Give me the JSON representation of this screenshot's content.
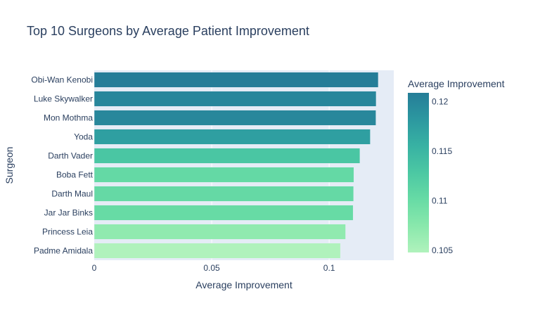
{
  "chart_data": {
    "type": "bar",
    "orientation": "horizontal",
    "title": "Top 10 Surgeons by Average Patient Improvement",
    "xlabel": "Average Improvement",
    "ylabel": "Surgeon",
    "xlim": [
      0,
      0.1275
    ],
    "xticks": [
      0,
      0.05,
      0.1
    ],
    "xtick_labels": [
      "0",
      "0.05",
      "0.1"
    ],
    "categories": [
      "Obi-Wan Kenobi",
      "Luke Skywalker",
      "Mon Mothma",
      "Yoda",
      "Darth Vader",
      "Boba Fett",
      "Darth Maul",
      "Jar Jar Binks",
      "Princess Leia",
      "Padme Amidala"
    ],
    "values": [
      0.1209,
      0.12,
      0.1199,
      0.1175,
      0.1131,
      0.1105,
      0.1104,
      0.1102,
      0.107,
      0.1048
    ],
    "grid": true,
    "colorbar": {
      "title": "Average Improvement",
      "range": [
        0.1048,
        0.1209
      ],
      "ticks": [
        0.105,
        0.11,
        0.115,
        0.12
      ],
      "tick_labels": [
        "0.105",
        "0.11",
        "0.115",
        "0.12"
      ],
      "colorscale": [
        "#b0f2bc",
        "#89e8ac",
        "#67dba5",
        "#4cc8a3",
        "#38b2a3",
        "#2c98a0",
        "#257d98"
      ]
    }
  }
}
